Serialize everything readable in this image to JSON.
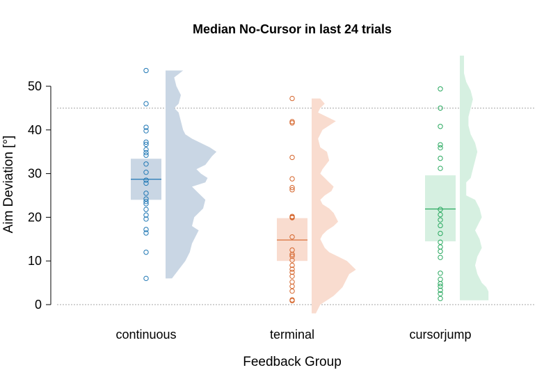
{
  "chart_data": {
    "type": "scatter",
    "title": "Median No-Cursor in last 24 trials",
    "xlabel": "Feedback Group",
    "ylabel": "Aim Deviation [°]",
    "ylim": [
      -2,
      57
    ],
    "yticks": [
      0,
      10,
      20,
      30,
      40,
      50
    ],
    "reference_lines": [
      0,
      45
    ],
    "categories": [
      "continuous",
      "terminal",
      "cursorjump"
    ],
    "series": [
      {
        "group": "continuous",
        "color": "#1f77b4",
        "fill": "#c9d6e4",
        "box": {
          "low": 24,
          "median": 28.7,
          "high": 33.4
        },
        "points": [
          53.6,
          46,
          40.6,
          39.8,
          37.2,
          36.7,
          35.5,
          34.8,
          34.2,
          32.2,
          30.3,
          28.5,
          27.8,
          25.5,
          24.2,
          23.6,
          23.1,
          21.8,
          20.5,
          19.6,
          17.2,
          16.4,
          12,
          6
        ],
        "density": [
          [
            6,
            1
          ],
          [
            8,
            4
          ],
          [
            10,
            7
          ],
          [
            12,
            9
          ],
          [
            14,
            10
          ],
          [
            16,
            12
          ],
          [
            17,
            13
          ],
          [
            18,
            10
          ],
          [
            20,
            11
          ],
          [
            22,
            15
          ],
          [
            24,
            16
          ],
          [
            25,
            14
          ],
          [
            26,
            12
          ],
          [
            27,
            10
          ],
          [
            28,
            16
          ],
          [
            29,
            17
          ],
          [
            30,
            14
          ],
          [
            31,
            12
          ],
          [
            32,
            16
          ],
          [
            34,
            19
          ],
          [
            35,
            21
          ],
          [
            36,
            18
          ],
          [
            37,
            14
          ],
          [
            38,
            10
          ],
          [
            39,
            7
          ],
          [
            40,
            6
          ],
          [
            42,
            5
          ],
          [
            44,
            4
          ],
          [
            45,
            2
          ],
          [
            46,
            4
          ],
          [
            48,
            5
          ],
          [
            50,
            3
          ],
          [
            52,
            2
          ],
          [
            53.6,
            6
          ]
        ]
      },
      {
        "group": "terminal",
        "color": "#d5642a",
        "fill": "#f9dccf",
        "box": {
          "low": 10,
          "median": 14.8,
          "high": 19.8
        },
        "points": [
          47.2,
          41.9,
          41.6,
          33.7,
          28.8,
          26.8,
          26.3,
          20.2,
          20,
          19.9,
          15.5,
          12.5,
          11.5,
          11.1,
          10.2,
          9,
          8.1,
          7.4,
          6.5,
          5.2,
          4.2,
          3.1,
          1.1,
          0.9
        ],
        "density": [
          [
            -2,
            0
          ],
          [
            0,
            2
          ],
          [
            1,
            5
          ],
          [
            2,
            8
          ],
          [
            3,
            10
          ],
          [
            4,
            12
          ],
          [
            5,
            13
          ],
          [
            6,
            14
          ],
          [
            7,
            15
          ],
          [
            8,
            18
          ],
          [
            9,
            16
          ],
          [
            10,
            14
          ],
          [
            11,
            10
          ],
          [
            12,
            6
          ],
          [
            13,
            4
          ],
          [
            14,
            3
          ],
          [
            15,
            2
          ],
          [
            16,
            3
          ],
          [
            17,
            5
          ],
          [
            18,
            8
          ],
          [
            19,
            10
          ],
          [
            20,
            9
          ],
          [
            21,
            8
          ],
          [
            22,
            6
          ],
          [
            23,
            3
          ],
          [
            24,
            2
          ],
          [
            25,
            4
          ],
          [
            26,
            7
          ],
          [
            27,
            8
          ],
          [
            28,
            6
          ],
          [
            29,
            4
          ],
          [
            30,
            2
          ],
          [
            31,
            3
          ],
          [
            33,
            6
          ],
          [
            35,
            5
          ],
          [
            36,
            2
          ],
          [
            38,
            1
          ],
          [
            40,
            3
          ],
          [
            41,
            6
          ],
          [
            42,
            9
          ],
          [
            43,
            5
          ],
          [
            44,
            1
          ],
          [
            45,
            2
          ],
          [
            46,
            4
          ],
          [
            47.2,
            2
          ]
        ]
      },
      {
        "group": "cursorjump",
        "color": "#27a85e",
        "fill": "#d6f0e1",
        "box": {
          "low": 14.5,
          "median": 21.9,
          "high": 29.6
        },
        "points": [
          49.4,
          45,
          40.8,
          36.6,
          35.9,
          33.5,
          31.2,
          21.8,
          20.6,
          19.4,
          18.1,
          16.3,
          14.3,
          13.2,
          12.2,
          10.8,
          7.2,
          5.8,
          4.8,
          4.2,
          3.3,
          2.5,
          1.4
        ],
        "density": [
          [
            1,
            11
          ],
          [
            3,
            11
          ],
          [
            4,
            10
          ],
          [
            5,
            8
          ],
          [
            7,
            6
          ],
          [
            9,
            5
          ],
          [
            11,
            6
          ],
          [
            13,
            8
          ],
          [
            15,
            7
          ],
          [
            17,
            5
          ],
          [
            18,
            6
          ],
          [
            20,
            8
          ],
          [
            22,
            7
          ],
          [
            24,
            5
          ],
          [
            25,
            1
          ],
          [
            28,
            1
          ],
          [
            29,
            3
          ],
          [
            31,
            4
          ],
          [
            33,
            5
          ],
          [
            35,
            6
          ],
          [
            37,
            5
          ],
          [
            39,
            3
          ],
          [
            41,
            2
          ],
          [
            43,
            2
          ],
          [
            45,
            3
          ],
          [
            47,
            4
          ],
          [
            49,
            3
          ],
          [
            51,
            1
          ],
          [
            53,
            0
          ],
          [
            55,
            0
          ],
          [
            57,
            0
          ]
        ]
      }
    ]
  }
}
